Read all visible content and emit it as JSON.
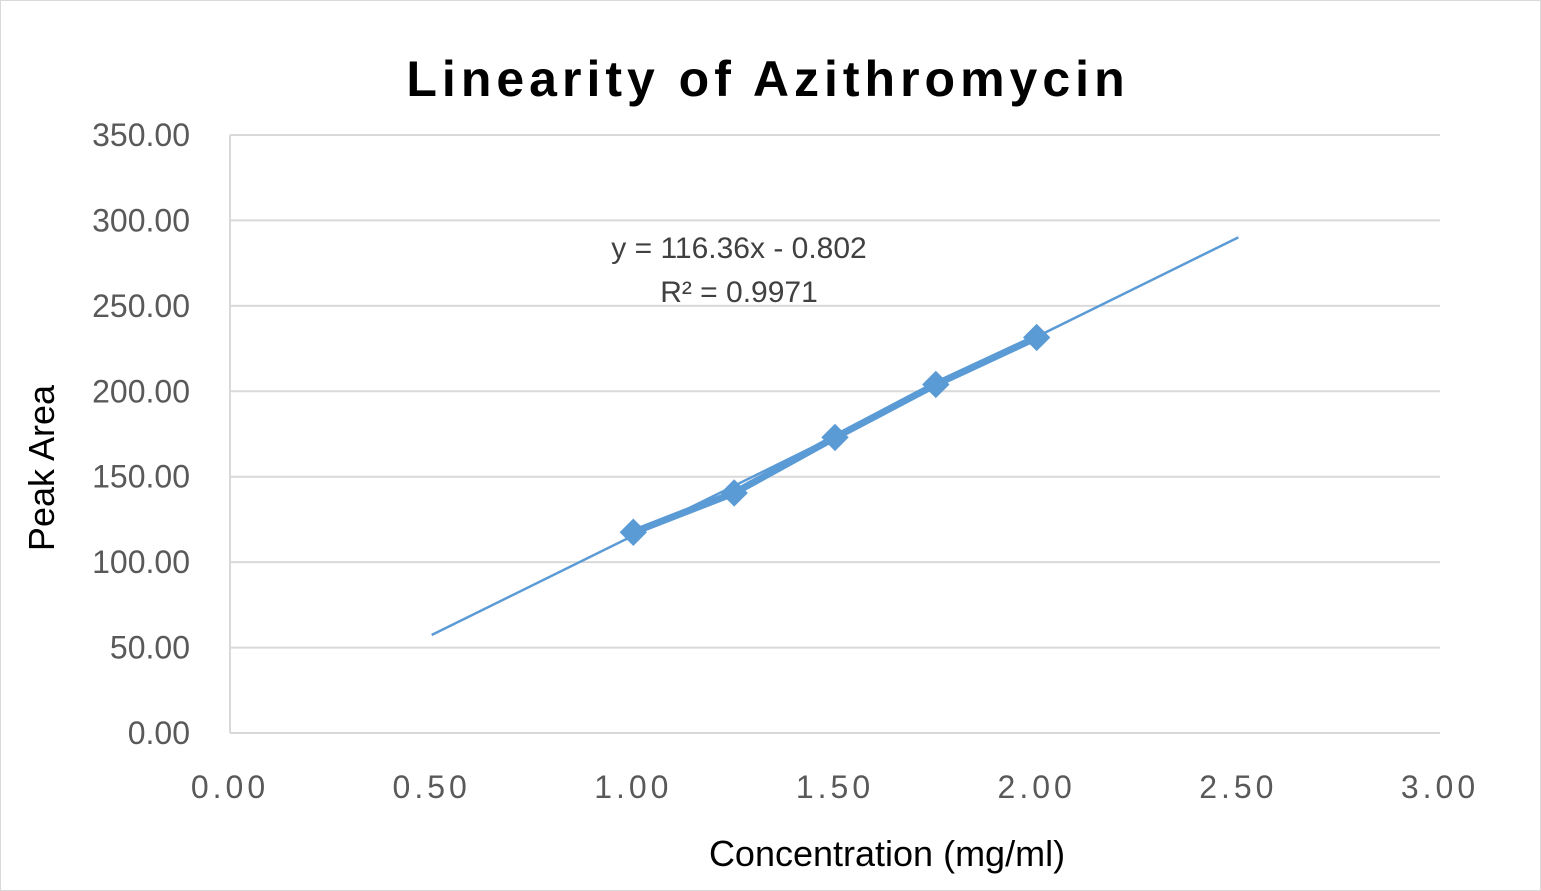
{
  "chart_data": {
    "type": "scatter",
    "title": "Linearity of Azithromycin",
    "xlabel": "Concentration (mg/ml)",
    "ylabel": "Peak Area",
    "xlim": [
      0,
      3
    ],
    "ylim": [
      0,
      350
    ],
    "x_ticks": [
      "0.00",
      "0.50",
      "1.00",
      "1.50",
      "2.00",
      "2.50",
      "3.00"
    ],
    "y_ticks": [
      "0.00",
      "50.00",
      "100.00",
      "150.00",
      "200.00",
      "250.00",
      "300.00",
      "350.00"
    ],
    "grid": "horizontal",
    "series": [
      {
        "x": [
          1.0,
          1.25,
          1.5,
          1.75,
          2.0
        ],
        "y": [
          117.5,
          140.5,
          173.0,
          204.0,
          231.5
        ],
        "color": "#5b9bd5",
        "marker": "diamond",
        "connected": true
      }
    ],
    "trendline": {
      "type": "linear",
      "slope": 116.36,
      "intercept": -0.802,
      "x_range": [
        0.5,
        2.5
      ],
      "color": "#5b9bd5",
      "equation": "y = 116.36x - 0.802",
      "r_squared": "R² = 0.9971"
    }
  }
}
